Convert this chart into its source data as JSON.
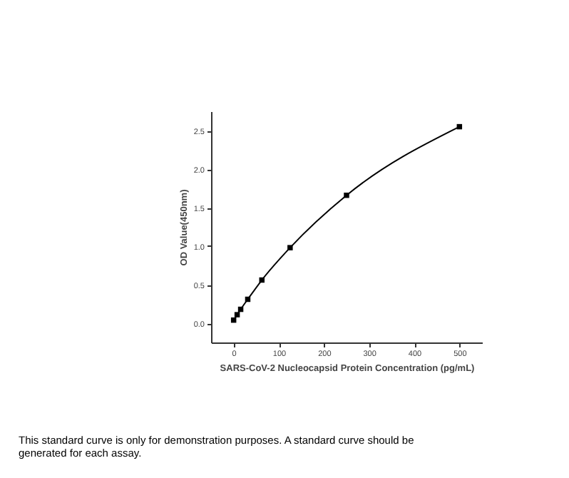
{
  "chart_data": {
    "type": "line",
    "xlabel": "SARS-CoV-2 Nucleocapsid Protein Concentration (pg/mL)",
    "ylabel": "OD Value(450nm)",
    "x": [
      0,
      7.8,
      15.6,
      31.25,
      62.5,
      125,
      250,
      500
    ],
    "series": [
      {
        "color": "#000000",
        "values": [
          0.04,
          0.11,
          0.18,
          0.31,
          0.56,
          0.98,
          1.66,
          2.55
        ]
      }
    ],
    "marker": "square",
    "line_style": "solid",
    "grid": false,
    "xlim": [
      -50,
      550
    ],
    "xticks": [
      0,
      100,
      200,
      300,
      400,
      500
    ],
    "ylim": [
      -0.25,
      2.75
    ],
    "yticks": [
      {
        "value": 0,
        "label": "0.0"
      },
      0.5,
      {
        "value": 1,
        "label": "1.0"
      },
      1.5,
      {
        "value": 2,
        "label": "2.0"
      },
      2.5
    ],
    "annotations": [
      "This standard curve is only for demonstration purposes. A standard curve should be generated for each assay."
    ]
  }
}
